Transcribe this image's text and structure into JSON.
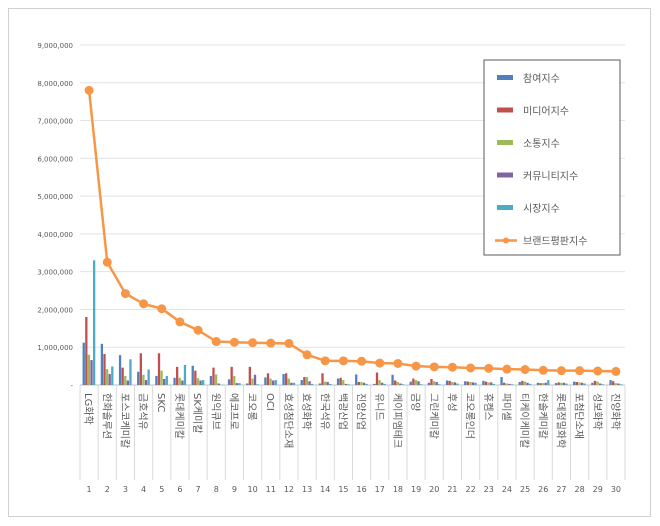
{
  "chart_data": {
    "type": "bar",
    "title": "",
    "xlabel": "",
    "ylabel": "",
    "ylim": [
      0,
      9000000
    ],
    "yticks": [
      "-",
      "1,000,000",
      "2,000,000",
      "3,000,000",
      "4,000,000",
      "5,000,000",
      "6,000,000",
      "7,000,000",
      "8,000,000",
      "9,000,000"
    ],
    "grid": true,
    "legend_position": "top-right",
    "categories": [
      "LG화학",
      "한화솔루션",
      "포스코케미칼",
      "금호석유",
      "SKC",
      "롯데케미칼",
      "SK케미칼",
      "원익큐브",
      "에코프로",
      "코오롱",
      "OCI",
      "효성첨단소재",
      "효성화학",
      "한국석유",
      "백광산업",
      "진양산업",
      "유니드",
      "케이피엠테크",
      "금양",
      "그린케미칼",
      "후성",
      "코오롱인더",
      "휴켐스",
      "파미셀",
      "티케이케미칼",
      "한솔케미칼",
      "롯데정밀화학",
      "포첨단소재",
      "성보화학",
      "진양화학"
    ],
    "ranks": [
      "1",
      "2",
      "3",
      "4",
      "5",
      "6",
      "7",
      "8",
      "9",
      "10",
      "11",
      "12",
      "13",
      "14",
      "15",
      "16",
      "17",
      "18",
      "19",
      "20",
      "21",
      "22",
      "23",
      "24",
      "25",
      "26",
      "27",
      "28",
      "29",
      "30"
    ],
    "series": [
      {
        "name": "참여지수",
        "type": "bar",
        "color": "#4f81bd",
        "values": [
          1120000,
          1090000,
          790000,
          350000,
          240000,
          190000,
          510000,
          240000,
          150000,
          40000,
          200000,
          290000,
          130000,
          40000,
          170000,
          280000,
          30000,
          270000,
          90000,
          60000,
          120000,
          100000,
          110000,
          210000,
          80000,
          60000,
          50000,
          90000,
          60000,
          130000
        ]
      },
      {
        "name": "미디어지수",
        "type": "bar",
        "color": "#c0504d",
        "values": [
          1800000,
          820000,
          460000,
          840000,
          840000,
          480000,
          380000,
          460000,
          480000,
          480000,
          310000,
          310000,
          210000,
          310000,
          190000,
          80000,
          330000,
          120000,
          170000,
          160000,
          110000,
          90000,
          90000,
          60000,
          110000,
          50000,
          70000,
          80000,
          110000,
          100000
        ]
      },
      {
        "name": "소통지수",
        "type": "bar",
        "color": "#9bbb59",
        "values": [
          800000,
          420000,
          240000,
          270000,
          380000,
          190000,
          180000,
          280000,
          240000,
          170000,
          170000,
          170000,
          210000,
          90000,
          130000,
          80000,
          130000,
          80000,
          130000,
          100000,
          80000,
          80000,
          70000,
          40000,
          90000,
          50000,
          60000,
          70000,
          90000,
          50000
        ]
      },
      {
        "name": "커뮤니티지수",
        "type": "bar",
        "color": "#8064a2",
        "values": [
          660000,
          290000,
          120000,
          130000,
          160000,
          120000,
          120000,
          40000,
          50000,
          270000,
          120000,
          60000,
          100000,
          80000,
          30000,
          60000,
          60000,
          40000,
          100000,
          80000,
          70000,
          70000,
          70000,
          30000,
          60000,
          60000,
          60000,
          60000,
          40000,
          40000
        ]
      },
      {
        "name": "시장지수",
        "type": "bar",
        "color": "#4bacc6",
        "values": [
          3300000,
          490000,
          680000,
          410000,
          240000,
          530000,
          130000,
          10000,
          50000,
          20000,
          130000,
          60000,
          30000,
          30000,
          20000,
          30000,
          30000,
          20000,
          20000,
          20000,
          40000,
          60000,
          30000,
          20000,
          30000,
          130000,
          40000,
          40000,
          20000,
          20000
        ]
      },
      {
        "name": "브랜드평판지수",
        "type": "line",
        "color": "#f79646",
        "values": [
          7800000,
          3250000,
          2420000,
          2150000,
          2020000,
          1670000,
          1450000,
          1150000,
          1130000,
          1120000,
          1110000,
          1100000,
          800000,
          640000,
          640000,
          630000,
          580000,
          570000,
          500000,
          480000,
          470000,
          450000,
          440000,
          420000,
          410000,
          390000,
          380000,
          380000,
          370000,
          360000
        ]
      }
    ]
  }
}
